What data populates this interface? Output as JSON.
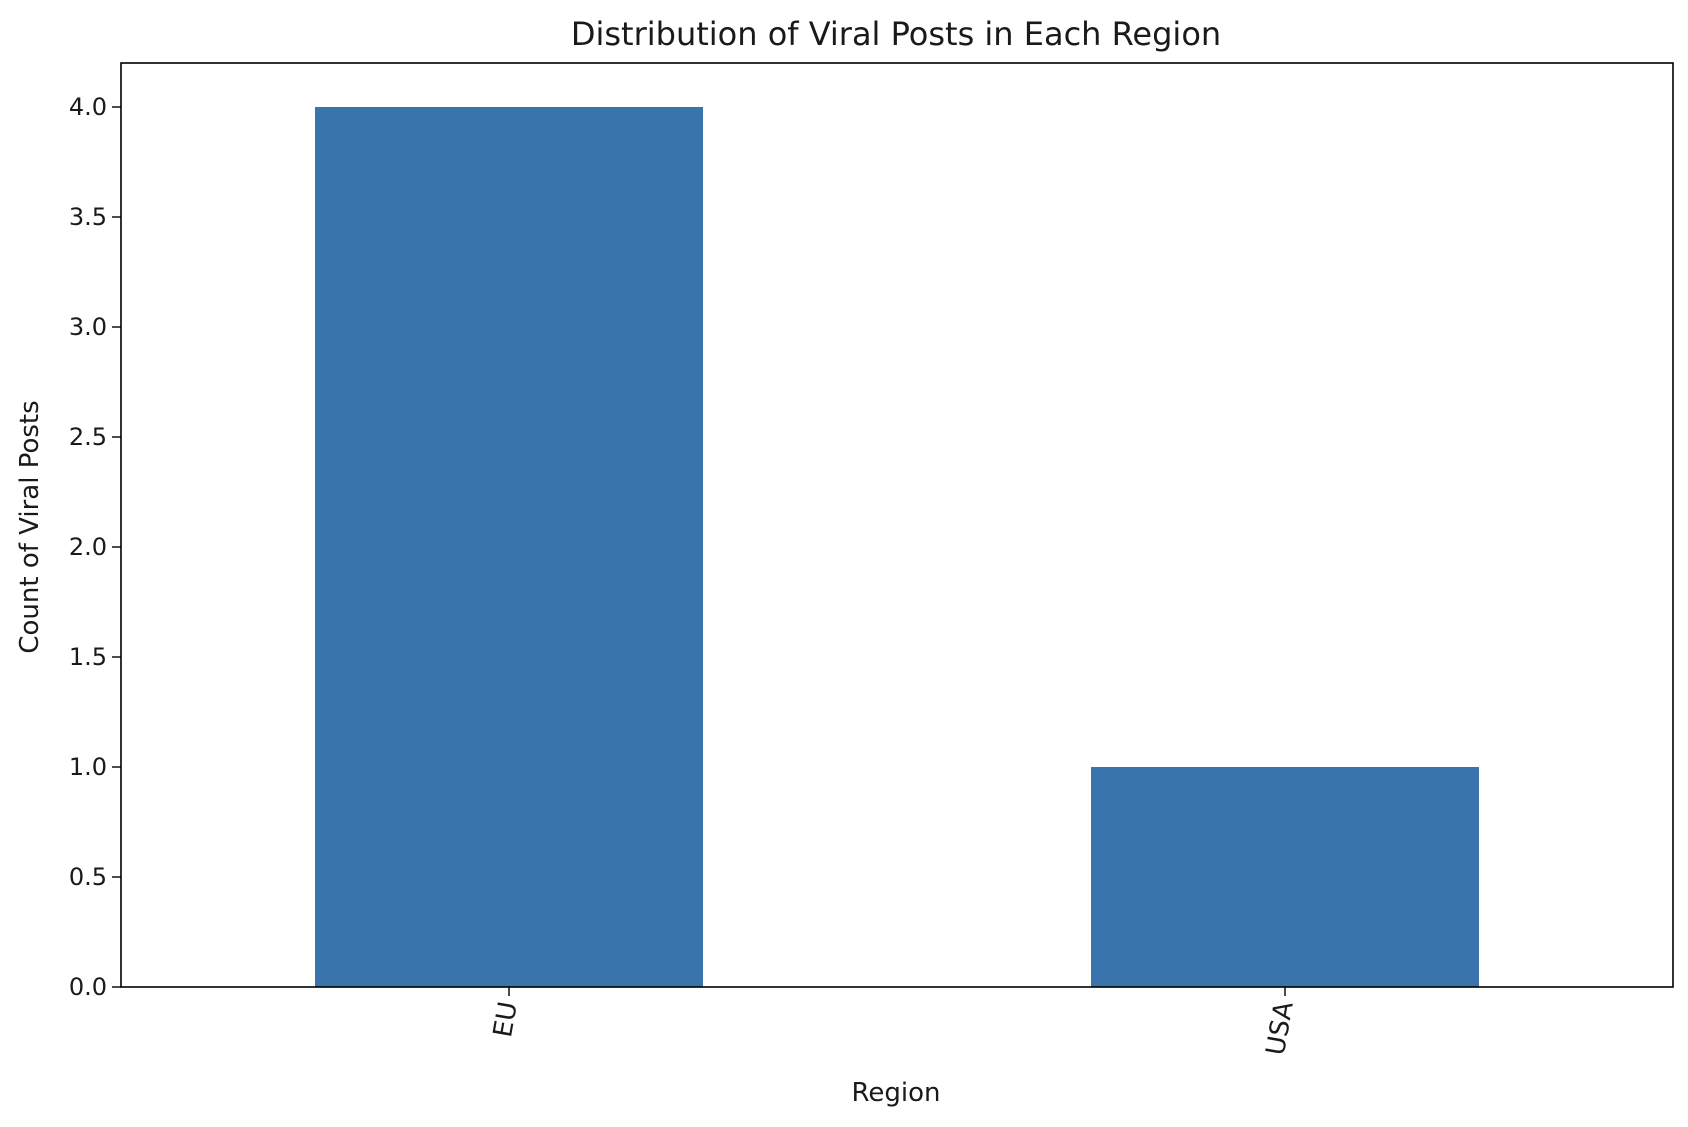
{
  "chart_data": {
    "type": "bar",
    "title": "Distribution of Viral Posts in Each Region",
    "xlabel": "Region",
    "ylabel": "Count of Viral Posts",
    "categories": [
      "EU",
      "USA"
    ],
    "values": [
      4,
      1
    ],
    "ylim": [
      0,
      4.2
    ],
    "yticks": [
      "0.0",
      "0.5",
      "1.0",
      "1.5",
      "2.0",
      "2.5",
      "3.0",
      "3.5",
      "4.0"
    ],
    "ytick_values": [
      0,
      0.5,
      1,
      1.5,
      2,
      2.5,
      3,
      3.5,
      4
    ],
    "xtick_rotation": "rotated ~80 degrees",
    "grid": false,
    "legend": "none",
    "bar_color": "#3a74ad"
  }
}
